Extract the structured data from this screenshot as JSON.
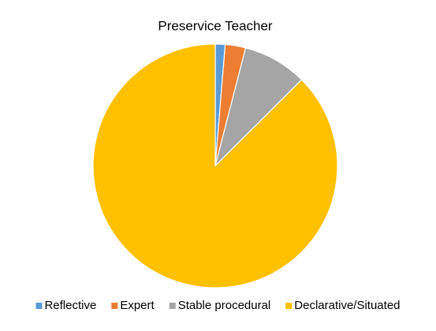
{
  "chart_data": {
    "type": "pie",
    "title": "Preservice Teacher",
    "categories": [
      "Reflective",
      "Expert",
      "Stable procedural",
      "Declarative/Situated"
    ],
    "values": [
      1.3,
      2.7,
      8.5,
      87.5
    ],
    "colors": [
      "#5b9bd5",
      "#ed7d31",
      "#a5a5a5",
      "#ffc000"
    ],
    "legend": "bottom"
  }
}
